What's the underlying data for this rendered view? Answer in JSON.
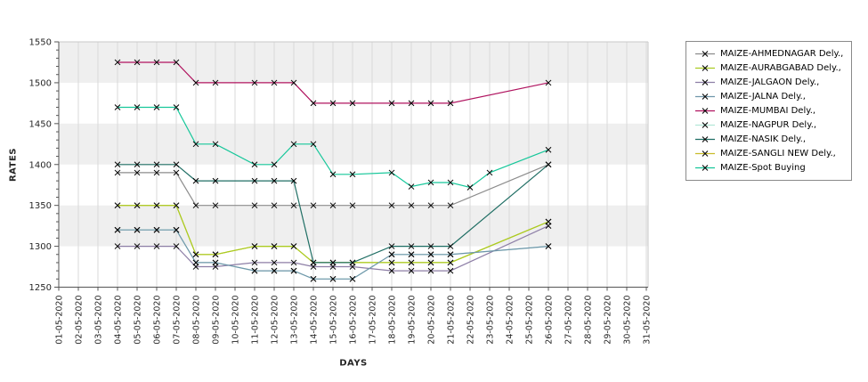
{
  "colors": {
    "background": "#ffffff",
    "band": "#efefef",
    "grid": "#d9d9d9",
    "spine_dark": "#555555",
    "spine_light": "#c8c8c8",
    "tick_text": "#262626",
    "marker": "#000000",
    "legend_border": "#8a8a8a"
  },
  "chart_data": {
    "type": "line",
    "title": "",
    "xlabel": "DAYS",
    "ylabel": "RATES",
    "ylim": [
      1250,
      1550
    ],
    "ytick_major_step": 50,
    "ytick_minor_step": 10,
    "y_tick_labels": [
      "1250",
      "1300",
      "1350",
      "1400",
      "1450",
      "1500",
      "1550"
    ],
    "x_tick_labels": [
      "01-05-2020",
      "02-05-2020",
      "03-05-2020",
      "04-05-2020",
      "05-05-2020",
      "06-05-2020",
      "07-05-2020",
      "08-05-2020",
      "09-05-2020",
      "10-05-2020",
      "11-05-2020",
      "12-05-2020",
      "13-05-2020",
      "14-05-2020",
      "15-05-2020",
      "16-05-2020",
      "17-05-2020",
      "18-05-2020",
      "19-05-2020",
      "20-05-2020",
      "21-05-2020",
      "22-05-2020",
      "23-05-2020",
      "24-05-2020",
      "25-05-2020",
      "26-05-2020",
      "27-05-2020",
      "28-05-2020",
      "29-05-2020",
      "30-05-2020",
      "31-05-2020"
    ],
    "legend_position": "outside-top-right",
    "grid": "vertical gridlines per day, alternating horizontal 50-unit bands",
    "marker": "black x at every data point",
    "series": [
      {
        "name": "MAIZE-AHMEDNAGAR Dely.,",
        "color": "#8c8c8c",
        "z": 1,
        "points": [
          [
            4,
            1390
          ],
          [
            5,
            1390
          ],
          [
            6,
            1390
          ],
          [
            7,
            1390
          ],
          [
            8,
            1350
          ],
          [
            9,
            1350
          ],
          [
            11,
            1350
          ],
          [
            12,
            1350
          ],
          [
            13,
            1350
          ],
          [
            14,
            1350
          ],
          [
            15,
            1350
          ],
          [
            16,
            1350
          ],
          [
            18,
            1350
          ],
          [
            19,
            1350
          ],
          [
            20,
            1350
          ],
          [
            21,
            1350
          ],
          [
            26,
            1400
          ]
        ]
      },
      {
        "name": "MAIZE-AURABGABAD Dely.,",
        "color": "#aacc22",
        "z": 1,
        "points": [
          [
            4,
            1350
          ],
          [
            5,
            1350
          ],
          [
            6,
            1350
          ],
          [
            7,
            1350
          ],
          [
            8,
            1290
          ],
          [
            9,
            1290
          ],
          [
            11,
            1300
          ],
          [
            12,
            1300
          ],
          [
            13,
            1300
          ],
          [
            14,
            1280
          ],
          [
            15,
            1280
          ],
          [
            16,
            1280
          ],
          [
            18,
            1280
          ],
          [
            19,
            1280
          ],
          [
            20,
            1280
          ],
          [
            21,
            1280
          ],
          [
            26,
            1330
          ]
        ]
      },
      {
        "name": "MAIZE-JALGAON Dely.,",
        "color": "#8d7ea6",
        "z": 1,
        "points": [
          [
            4,
            1300
          ],
          [
            5,
            1300
          ],
          [
            6,
            1300
          ],
          [
            7,
            1300
          ],
          [
            8,
            1275
          ],
          [
            9,
            1275
          ],
          [
            11,
            1280
          ],
          [
            12,
            1280
          ],
          [
            13,
            1280
          ],
          [
            14,
            1275
          ],
          [
            15,
            1275
          ],
          [
            16,
            1275
          ],
          [
            18,
            1270
          ],
          [
            19,
            1270
          ],
          [
            20,
            1270
          ],
          [
            21,
            1270
          ],
          [
            26,
            1325
          ]
        ]
      },
      {
        "name": "MAIZE-JALNA Dely.,",
        "color": "#6f96aa",
        "z": 1,
        "points": [
          [
            4,
            1320
          ],
          [
            5,
            1320
          ],
          [
            6,
            1320
          ],
          [
            7,
            1320
          ],
          [
            8,
            1280
          ],
          [
            9,
            1280
          ],
          [
            11,
            1270
          ],
          [
            12,
            1270
          ],
          [
            13,
            1270
          ],
          [
            14,
            1260
          ],
          [
            15,
            1260
          ],
          [
            16,
            1260
          ],
          [
            18,
            1290
          ],
          [
            19,
            1290
          ],
          [
            20,
            1290
          ],
          [
            21,
            1290
          ],
          [
            26,
            1300
          ]
        ]
      },
      {
        "name": "MAIZE-MUMBAI Dely.,",
        "color": "#b0135f",
        "z": 1,
        "points": [
          [
            4,
            1525
          ],
          [
            5,
            1525
          ],
          [
            6,
            1525
          ],
          [
            7,
            1525
          ],
          [
            8,
            1500
          ],
          [
            9,
            1500
          ],
          [
            11,
            1500
          ],
          [
            12,
            1500
          ],
          [
            13,
            1500
          ],
          [
            14,
            1475
          ],
          [
            15,
            1475
          ],
          [
            16,
            1475
          ],
          [
            18,
            1475
          ],
          [
            19,
            1475
          ],
          [
            20,
            1475
          ],
          [
            21,
            1475
          ],
          [
            26,
            1500
          ]
        ]
      },
      {
        "name": "MAIZE-NAGPUR Dely.,",
        "color": "#b2e8d8",
        "z": 0,
        "visually_hidden_behind": "MAIZE-JALNA Dely., (identical values)",
        "points": [
          [
            4,
            1320
          ],
          [
            5,
            1320
          ],
          [
            6,
            1320
          ],
          [
            7,
            1320
          ],
          [
            8,
            1280
          ],
          [
            9,
            1280
          ],
          [
            11,
            1270
          ],
          [
            12,
            1270
          ],
          [
            13,
            1270
          ],
          [
            14,
            1260
          ],
          [
            15,
            1260
          ],
          [
            16,
            1260
          ],
          [
            18,
            1290
          ],
          [
            19,
            1290
          ],
          [
            20,
            1290
          ],
          [
            21,
            1290
          ],
          [
            26,
            1300
          ]
        ]
      },
      {
        "name": "MAIZE-NASIK Dely.,",
        "color": "#1f6e64",
        "z": 1,
        "points": [
          [
            4,
            1400
          ],
          [
            5,
            1400
          ],
          [
            6,
            1400
          ],
          [
            7,
            1400
          ],
          [
            8,
            1380
          ],
          [
            9,
            1380
          ],
          [
            11,
            1380
          ],
          [
            12,
            1380
          ],
          [
            13,
            1380
          ],
          [
            14,
            1280
          ],
          [
            15,
            1280
          ],
          [
            16,
            1280
          ],
          [
            18,
            1300
          ],
          [
            19,
            1300
          ],
          [
            20,
            1300
          ],
          [
            21,
            1300
          ],
          [
            26,
            1400
          ]
        ]
      },
      {
        "name": "MAIZE-SANGLI NEW Dely.,",
        "color": "#c9bc2a",
        "z": 0,
        "visually_hidden_behind": "MAIZE-AURABGABAD Dely., (identical values)",
        "points": [
          [
            4,
            1350
          ],
          [
            5,
            1350
          ],
          [
            6,
            1350
          ],
          [
            7,
            1350
          ],
          [
            8,
            1290
          ],
          [
            9,
            1290
          ],
          [
            11,
            1300
          ],
          [
            12,
            1300
          ],
          [
            13,
            1300
          ],
          [
            14,
            1280
          ],
          [
            15,
            1280
          ],
          [
            16,
            1280
          ],
          [
            18,
            1280
          ],
          [
            19,
            1280
          ],
          [
            20,
            1280
          ],
          [
            21,
            1280
          ],
          [
            26,
            1330
          ]
        ]
      },
      {
        "name": "MAIZE-Spot Buying",
        "color": "#16c79a",
        "z": 1,
        "points": [
          [
            4,
            1470
          ],
          [
            5,
            1470
          ],
          [
            6,
            1470
          ],
          [
            7,
            1470
          ],
          [
            8,
            1425
          ],
          [
            9,
            1425
          ],
          [
            11,
            1400
          ],
          [
            12,
            1400
          ],
          [
            13,
            1425
          ],
          [
            14,
            1425
          ],
          [
            15,
            1388
          ],
          [
            16,
            1388
          ],
          [
            18,
            1390
          ],
          [
            19,
            1373
          ],
          [
            20,
            1378
          ],
          [
            21,
            1378
          ],
          [
            22,
            1372
          ],
          [
            23,
            1390
          ],
          [
            26,
            1418
          ]
        ]
      }
    ]
  }
}
